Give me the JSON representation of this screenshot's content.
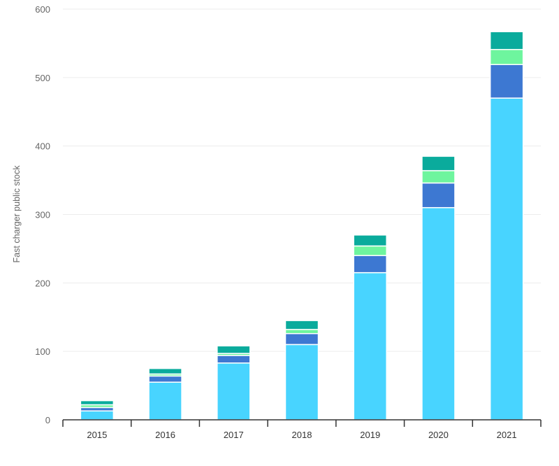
{
  "chart_data": {
    "type": "bar",
    "stacked": true,
    "categories": [
      "2015",
      "2016",
      "2017",
      "2018",
      "2019",
      "2020",
      "2021"
    ],
    "series": [
      {
        "values": [
          13,
          55,
          83,
          110,
          215,
          310,
          470
        ]
      },
      {
        "values": [
          5,
          9,
          11,
          16,
          25,
          36,
          49
        ]
      },
      {
        "values": [
          4,
          3,
          3,
          6,
          14,
          18,
          22
        ]
      },
      {
        "values": [
          6,
          8,
          11,
          13,
          16,
          21,
          26
        ]
      }
    ],
    "colors": [
      "#48d4ff",
      "#3d78d2",
      "#6ef59e",
      "#0aab9c"
    ],
    "xlabel": "",
    "ylabel": "Fast charger public stock",
    "ylim": [
      0,
      600
    ],
    "yticks": [
      "0",
      "100",
      "200",
      "300",
      "400",
      "500",
      "600"
    ],
    "grid": true
  }
}
